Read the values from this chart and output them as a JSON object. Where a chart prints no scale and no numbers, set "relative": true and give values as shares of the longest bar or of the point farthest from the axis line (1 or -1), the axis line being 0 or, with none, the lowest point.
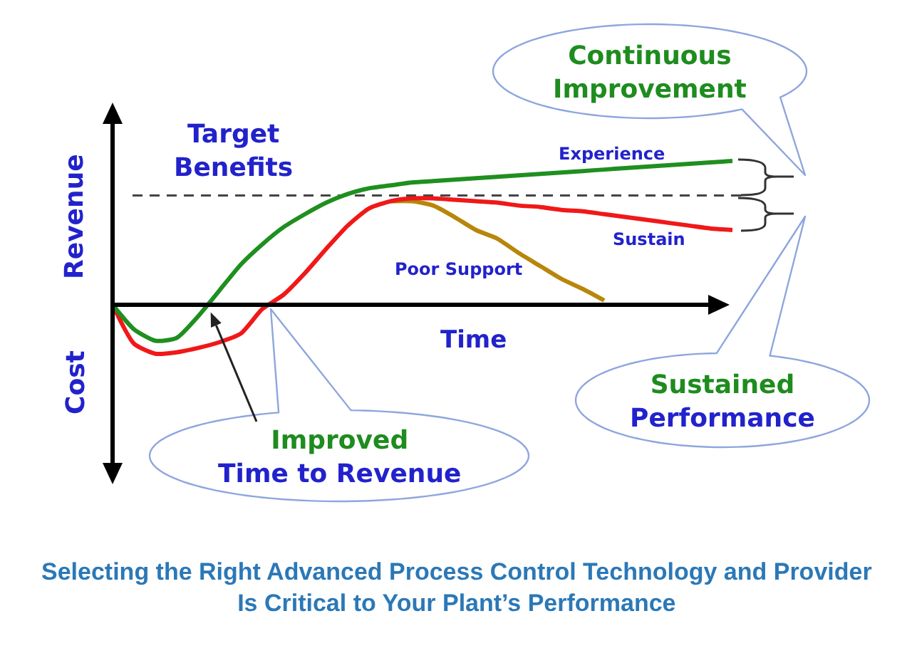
{
  "chart_data": {
    "type": "line",
    "relative": true,
    "xlabel": "Time",
    "ylabel": "Revenue",
    "categories": [
      null,
      null,
      null,
      null,
      null,
      null,
      null,
      null,
      null,
      null,
      null,
      null,
      null,
      null,
      null,
      null,
      null,
      null,
      null,
      null,
      null,
      null,
      null,
      null,
      null,
      null,
      null,
      null,
      null,
      null
    ],
    "series": [
      {
        "name": "Experience",
        "color": "#1f8f1f",
        "values": [
          0,
          -0.17,
          -0.25,
          -0.23,
          -0.08,
          0.1,
          0.28,
          0.42,
          0.54,
          0.63,
          0.71,
          0.77,
          0.81,
          0.83,
          0.85,
          0.86,
          0.87,
          0.88,
          0.89,
          0.9,
          0.91,
          0.92,
          0.93,
          0.94,
          0.95,
          0.96,
          0.97,
          0.98,
          0.99,
          1.0
        ]
      },
      {
        "name": "Sustain",
        "color": "#f01818",
        "values": [
          0,
          -0.27,
          -0.34,
          -0.33,
          -0.3,
          -0.26,
          -0.2,
          -0.03,
          0.07,
          0.22,
          0.39,
          0.55,
          0.67,
          0.72,
          0.74,
          0.74,
          0.73,
          0.72,
          0.71,
          0.69,
          0.68,
          0.66,
          0.65,
          0.63,
          0.61,
          0.59,
          0.57,
          0.55,
          0.53,
          0.52
        ]
      },
      {
        "name": "Poor Support",
        "color": "#b8860b",
        "values": [
          null,
          null,
          null,
          null,
          null,
          null,
          null,
          null,
          null,
          null,
          null,
          null,
          null,
          0.72,
          0.72,
          0.69,
          0.61,
          0.52,
          0.46,
          0.36,
          0.27,
          0.18,
          0.11,
          0.03,
          null,
          null,
          null,
          null,
          null,
          null
        ]
      }
    ],
    "ref_lines": [
      {
        "axis": "y",
        "value": 0.76,
        "label": "Target Benefits",
        "color": "#444444",
        "line_style": "dashed"
      }
    ],
    "annotations": [
      "Cost",
      "Continuous Improvement",
      "Sustained Performance",
      "Improved Time to Revenue",
      "Selecting the Right Advanced Process Control Technology and Provider Is Critical to Your Plant’s Performance"
    ]
  }
}
